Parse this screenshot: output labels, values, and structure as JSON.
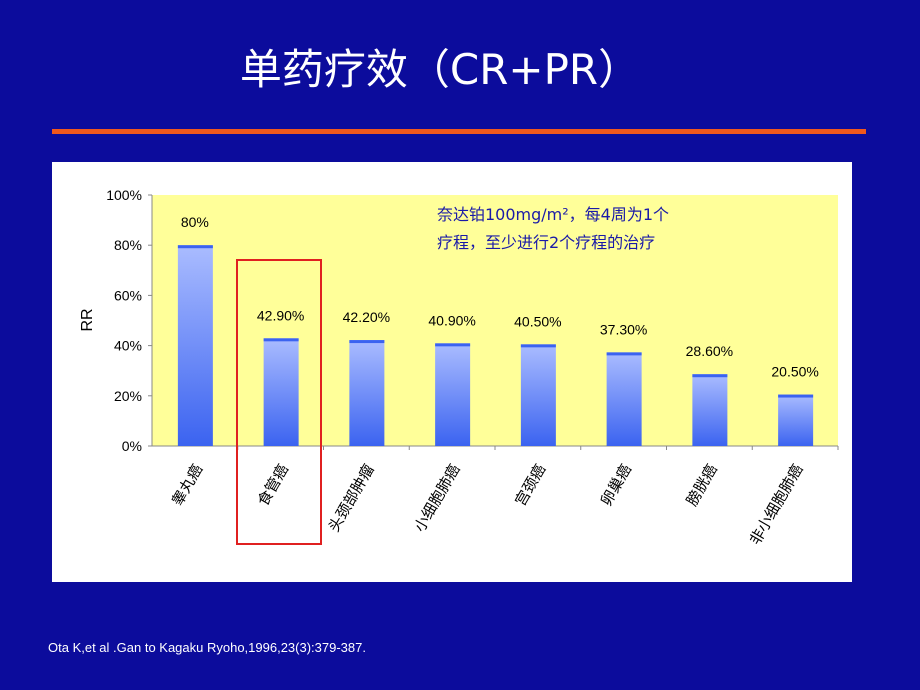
{
  "slide": {
    "title": "单药疗效（CR+PR）",
    "citation": "Ota K,et al .Gan to Kagaku Ryoho,1996,23(3):379-387."
  },
  "chart_data": {
    "type": "bar",
    "categories": [
      "睾丸癌",
      "食管癌",
      "头颈部肿瘤",
      "小细胞肺癌",
      "宫颈癌",
      "卵巢癌",
      "膀胱癌",
      "非小细胞肺癌"
    ],
    "values": [
      80,
      42.9,
      42.2,
      40.9,
      40.5,
      37.3,
      28.6,
      20.5
    ],
    "data_labels": [
      "80%",
      "42.90%",
      "42.20%",
      "40.90%",
      "40.50%",
      "37.30%",
      "28.60%",
      "20.50%"
    ],
    "ylabel": "RR",
    "xlabel": "",
    "ylim": [
      0,
      100
    ],
    "yticks": [
      "0%",
      "20%",
      "40%",
      "60%",
      "80%",
      "100%"
    ],
    "annotation": [
      "奈达铂100mg/m²，每4周为1个",
      "疗程，至少进行2个疗程的治疗"
    ],
    "highlighted_category": "食管癌",
    "colors": {
      "plot_bg": "#ffff99",
      "bar": "#3b63f0",
      "bar_light": "#aabcff",
      "annotation": "#1a1aa8",
      "highlight": "#e02020"
    }
  }
}
